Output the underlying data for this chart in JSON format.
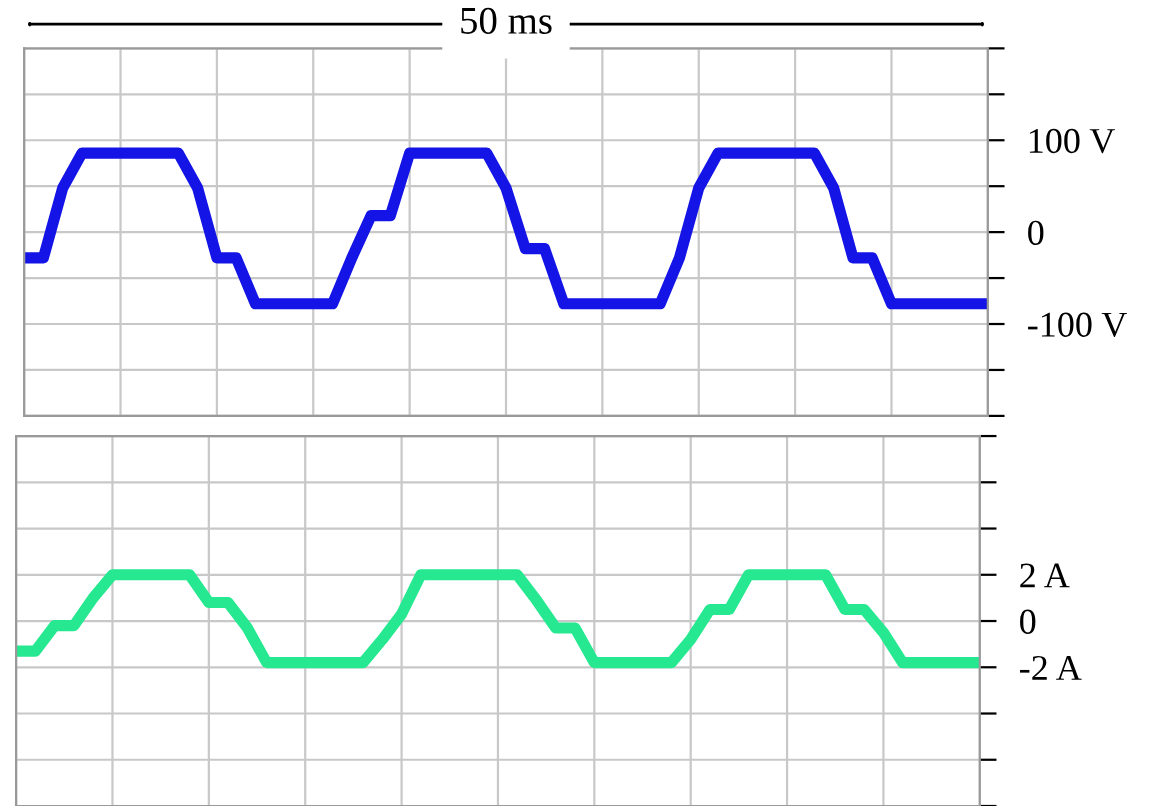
{
  "chart_data": [
    {
      "type": "line",
      "annotations": [
        "50 ms"
      ],
      "categories": [
        null,
        null,
        null,
        null,
        null,
        null,
        null,
        null,
        null,
        null,
        null,
        null,
        null,
        null,
        null,
        null,
        null,
        null,
        null,
        null,
        null,
        null,
        null,
        null,
        null,
        null,
        null,
        null,
        null,
        null,
        null,
        null,
        null,
        null,
        null,
        null,
        null,
        null,
        null,
        null,
        null,
        null,
        null,
        null,
        null,
        null,
        null,
        null,
        null,
        null,
        null
      ],
      "ylim": [
        -200,
        200
      ],
      "yticks": [
        {
          "value": -200,
          "label": null
        },
        {
          "value": -150,
          "label": null
        },
        {
          "value": -100,
          "label": "-100 V"
        },
        {
          "value": -50,
          "label": null
        },
        {
          "value": 0,
          "label": "0"
        },
        {
          "value": 50,
          "label": null
        },
        {
          "value": 100,
          "label": "100 V"
        },
        {
          "value": 150,
          "label": null
        },
        {
          "value": 200,
          "label": null
        }
      ],
      "tick_labels": "y",
      "grid": true,
      "series": [
        {
          "color": "#1414e6",
          "values": [
            -28,
            -28,
            48,
            86,
            86,
            86,
            86,
            86,
            86,
            48,
            -28,
            -28,
            -78,
            -78,
            -78,
            -78,
            -78,
            -28,
            18,
            18,
            86,
            86,
            86,
            86,
            86,
            48,
            -18,
            -18,
            -78,
            -78,
            -78,
            -78,
            -78,
            -78,
            -28,
            48,
            86,
            86,
            86,
            86,
            86,
            86,
            48,
            -28,
            -28,
            -78,
            -78,
            -78,
            -78,
            -78,
            -78
          ]
        }
      ]
    },
    {
      "type": "line",
      "categories": [
        null,
        null,
        null,
        null,
        null,
        null,
        null,
        null,
        null,
        null,
        null,
        null,
        null,
        null,
        null,
        null,
        null,
        null,
        null,
        null,
        null,
        null,
        null,
        null,
        null,
        null,
        null,
        null,
        null,
        null,
        null,
        null,
        null,
        null,
        null,
        null,
        null,
        null,
        null,
        null,
        null,
        null,
        null,
        null,
        null,
        null,
        null,
        null,
        null,
        null,
        null
      ],
      "ylim": [
        -8,
        8
      ],
      "yticks": [
        {
          "value": -8,
          "label": null
        },
        {
          "value": -6,
          "label": null
        },
        {
          "value": -4,
          "label": null
        },
        {
          "value": -2,
          "label": "-2 A"
        },
        {
          "value": 0,
          "label": "0"
        },
        {
          "value": 2,
          "label": "2 A"
        },
        {
          "value": 4,
          "label": null
        },
        {
          "value": 6,
          "label": null
        },
        {
          "value": 8,
          "label": null
        }
      ],
      "tick_labels": "y",
      "grid": true,
      "series": [
        {
          "color": "#26e890",
          "values": [
            -1.3,
            -1.3,
            -0.2,
            -0.2,
            1.0,
            2.0,
            2.0,
            2.0,
            2.0,
            2.0,
            0.8,
            0.8,
            -0.3,
            -1.8,
            -1.8,
            -1.8,
            -1.8,
            -1.8,
            -1.8,
            -0.8,
            0.3,
            2.0,
            2.0,
            2.0,
            2.0,
            2.0,
            2.0,
            0.9,
            -0.3,
            -0.3,
            -1.8,
            -1.8,
            -1.8,
            -1.8,
            -1.8,
            -0.8,
            0.5,
            0.5,
            2.0,
            2.0,
            2.0,
            2.0,
            2.0,
            0.5,
            0.5,
            -0.5,
            -1.8,
            -1.8,
            -1.8,
            -1.8,
            -1.8
          ]
        }
      ]
    }
  ]
}
